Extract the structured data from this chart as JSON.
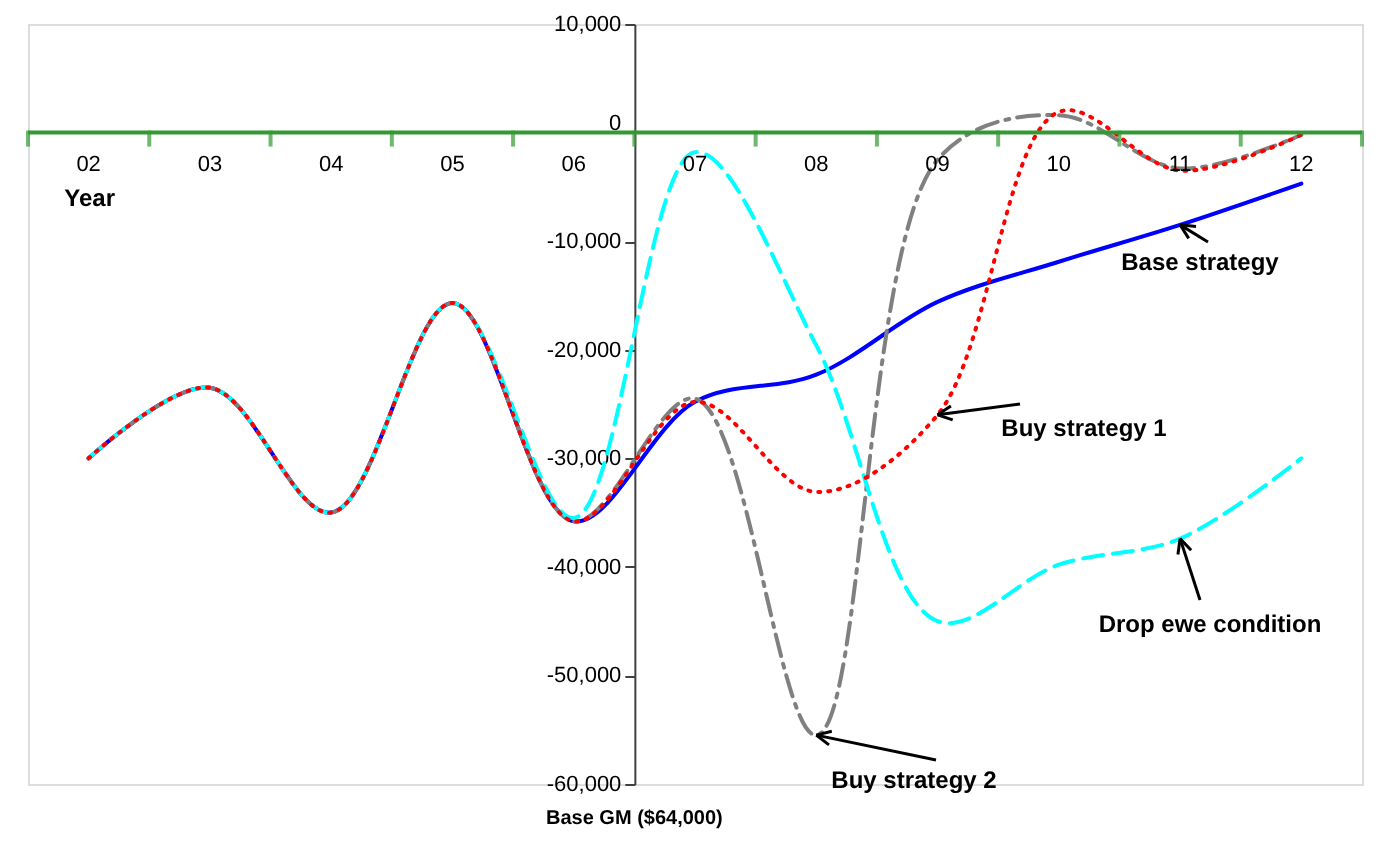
{
  "chart_data": {
    "type": "line",
    "xlabel": "Year",
    "categories": [
      "02",
      "03",
      "04",
      "05",
      "06",
      "07",
      "08",
      "09",
      "10",
      "11",
      "12"
    ],
    "series": [
      {
        "color": "#0000ff",
        "line_style": "solid",
        "values": [
          -30000,
          -23500,
          -35000,
          -15700,
          -35800,
          -24800,
          -22300,
          -15600,
          -11900,
          -8500,
          -4700
        ]
      },
      {
        "color": "#ff0000",
        "line_style": "dotted",
        "values": [
          -30000,
          -23500,
          -35000,
          -15700,
          -35800,
          -24800,
          -33100,
          -26000,
          1900,
          -3500,
          -200
        ]
      },
      {
        "color": "#808080",
        "line_style": "dashed",
        "values": [
          -30000,
          -23500,
          -35000,
          -15700,
          -35800,
          -24500,
          -55500,
          -2500,
          1600,
          -3300,
          -200
        ]
      },
      {
        "color": "#00ffff",
        "line_style": "dashed",
        "values": [
          -30000,
          -23500,
          -35000,
          -15700,
          -35500,
          -1800,
          -19600,
          -45000,
          -39800,
          -37400,
          -30000
        ]
      }
    ],
    "annotations": [
      {
        "text": "Base strategy",
        "x": "11",
        "y": -8500
      },
      {
        "text": "Buy strategy 1",
        "x": "09",
        "y": -26000
      },
      {
        "text": "Buy strategy 2",
        "x": "08",
        "y": -55500
      },
      {
        "text": "Drop ewe condition",
        "x": "11",
        "y": -37400
      },
      "Base GM ($64,000)"
    ],
    "ylim": [
      -60000,
      10000
    ],
    "yticks": [
      {
        "value": -60000,
        "label": "-60,000"
      },
      {
        "value": -50000,
        "label": "-50,000"
      },
      {
        "value": -40000,
        "label": "-40,000"
      },
      {
        "value": -30000,
        "label": "-30,000"
      },
      {
        "value": -20000,
        "label": "-20,000"
      },
      {
        "value": -10000,
        "label": "-10,000"
      },
      {
        "value": 0,
        "label": "0"
      },
      {
        "value": 10000,
        "label": "10,000"
      }
    ],
    "grid": false
  }
}
